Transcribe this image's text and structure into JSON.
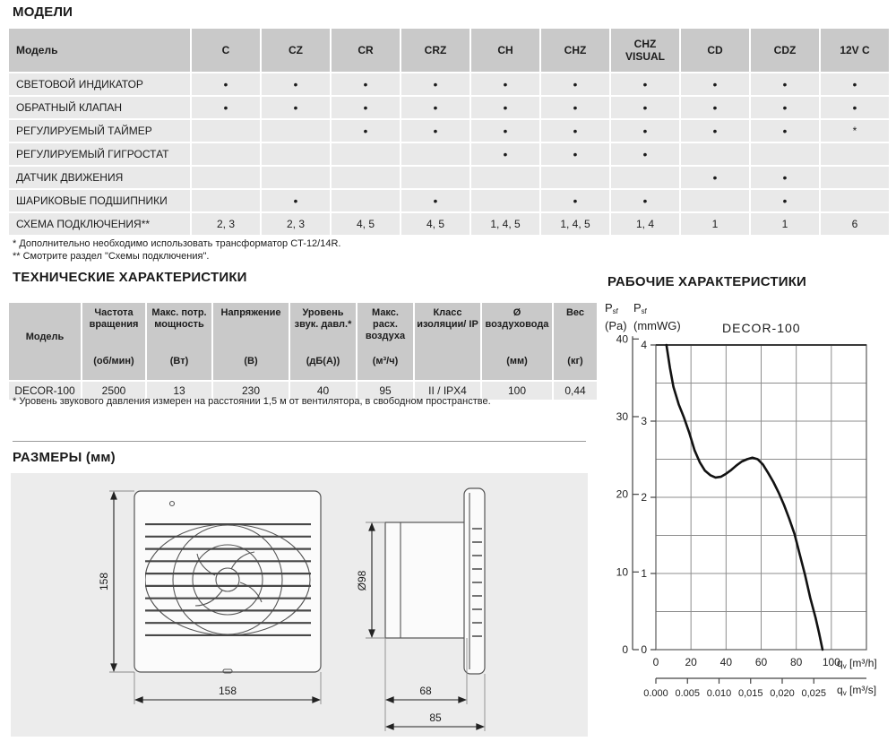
{
  "sections": {
    "models_title": "МОДЕЛИ",
    "tech_title": "ТЕХНИЧЕСКИЕ ХАРАКТЕРИСТИКИ",
    "dimensions_title": "РАЗМЕРЫ (мм)",
    "performance_title": "РАБОЧИЕ ХАРАКТЕРИСТИКИ"
  },
  "models_table": {
    "header_model": "Модель",
    "columns": [
      "C",
      "CZ",
      "CR",
      "CRZ",
      "CH",
      "CHZ",
      "CHZ\nVISUAL",
      "CD",
      "CDZ",
      "12V C"
    ],
    "rows": [
      {
        "label": "СВЕТОВОЙ ИНДИКАТОР",
        "cells": [
          "•",
          "•",
          "•",
          "•",
          "•",
          "•",
          "•",
          "•",
          "•",
          "•"
        ]
      },
      {
        "label": "ОБРАТНЫЙ КЛАПАН",
        "cells": [
          "•",
          "•",
          "•",
          "•",
          "•",
          "•",
          "•",
          "•",
          "•",
          "•"
        ]
      },
      {
        "label": "РЕГУЛИРУЕМЫЙ ТАЙМЕР",
        "cells": [
          "",
          "",
          "•",
          "•",
          "•",
          "•",
          "•",
          "•",
          "•",
          "*"
        ]
      },
      {
        "label": "РЕГУЛИРУЕМЫЙ ГИГРОСТАТ",
        "cells": [
          "",
          "",
          "",
          "",
          "•",
          "•",
          "•",
          "",
          "",
          ""
        ]
      },
      {
        "label": "ДАТЧИК ДВИЖЕНИЯ",
        "cells": [
          "",
          "",
          "",
          "",
          "",
          "",
          "",
          "•",
          "•",
          ""
        ]
      },
      {
        "label": "ШАРИКОВЫЕ ПОДШИПНИКИ",
        "cells": [
          "",
          "•",
          "",
          "•",
          "",
          "•",
          "•",
          "",
          "•",
          ""
        ]
      },
      {
        "label": "СХЕМА ПОДКЛЮЧЕНИЯ**",
        "cells": [
          "2, 3",
          "2, 3",
          "4, 5",
          "4, 5",
          "1, 4, 5",
          "1, 4, 5",
          "1, 4",
          "1",
          "1",
          "6"
        ]
      }
    ],
    "footnote1": "* Дополнительно необходимо использовать трансформатор CT-12/14R.",
    "footnote2": "** Смотрите раздел \"Схемы подключения\"."
  },
  "tech_table": {
    "columns": [
      {
        "name": "Модель",
        "unit": ""
      },
      {
        "name": "Частота вращения",
        "unit": "(об/мин)"
      },
      {
        "name": "Макс. потр. мощность",
        "unit": "(Вт)"
      },
      {
        "name": "Напряжение",
        "unit": "(В)"
      },
      {
        "name": "Уровень звук. давл.*",
        "unit": "(дБ(А))"
      },
      {
        "name": "Макс. расх. воздуха",
        "unit": "(м³/ч)"
      },
      {
        "name": "Класс изоляции/ IP",
        "unit": ""
      },
      {
        "name": "Ø воздуховода",
        "unit": "(мм)"
      },
      {
        "name": "Вес",
        "unit": "(кг)"
      }
    ],
    "row": [
      "DECOR-100",
      "2500",
      "13",
      "230",
      "40",
      "95",
      "II / IPX4",
      "100",
      "0,44"
    ],
    "footnote": "* Уровень звукового давления измерен на расстоянии 1,5 м от вентилятора, в свободном пространстве."
  },
  "dimensions": {
    "front_height": "158",
    "front_width": "158",
    "duct_diameter": "Ø98",
    "duct_depth": "68",
    "total_depth": "85"
  },
  "chart_data": {
    "type": "line",
    "title": "DECOR-100",
    "p_symbol": "P",
    "p_subscript": "sf",
    "pa_unit": "(Pa)",
    "mmwg_unit": "(mmWG)",
    "q_symbol": "q",
    "q_subscript": "v",
    "q_unit_hour": "[m³/h]",
    "q_unit_sec": "[m³/s]",
    "x_ticks": [
      0,
      20,
      40,
      60,
      80,
      100
    ],
    "x_ticks_secondary": [
      "0.000",
      "0.005",
      "0.010",
      "0,015",
      "0,020",
      "0,025"
    ],
    "y_ticks_pa": [
      40,
      30,
      20,
      10,
      0
    ],
    "y_ticks_mmwg": [
      4,
      3,
      2,
      1,
      0
    ],
    "x_grid_range": [
      0,
      120
    ],
    "y_range_mmwg": [
      0,
      4
    ],
    "grid": true,
    "series": [
      {
        "name": "DECOR-100",
        "x_qv_m3h_vs_y_psf_mmwg": [
          [
            6,
            4.0
          ],
          [
            8,
            3.7
          ],
          [
            10,
            3.45
          ],
          [
            13,
            3.22
          ],
          [
            16,
            3.05
          ],
          [
            19,
            2.85
          ],
          [
            22,
            2.62
          ],
          [
            25,
            2.46
          ],
          [
            28,
            2.35
          ],
          [
            31,
            2.29
          ],
          [
            34,
            2.26
          ],
          [
            37,
            2.27
          ],
          [
            40,
            2.31
          ],
          [
            43,
            2.36
          ],
          [
            46,
            2.42
          ],
          [
            49,
            2.47
          ],
          [
            52,
            2.5
          ],
          [
            55,
            2.52
          ],
          [
            58,
            2.5
          ],
          [
            61,
            2.43
          ],
          [
            64,
            2.32
          ],
          [
            67,
            2.2
          ],
          [
            70,
            2.06
          ],
          [
            73,
            1.9
          ],
          [
            76,
            1.72
          ],
          [
            79,
            1.52
          ],
          [
            82,
            1.25
          ],
          [
            85,
            0.98
          ],
          [
            88,
            0.68
          ],
          [
            91,
            0.42
          ],
          [
            93,
            0.22
          ],
          [
            95,
            0
          ]
        ]
      }
    ]
  }
}
